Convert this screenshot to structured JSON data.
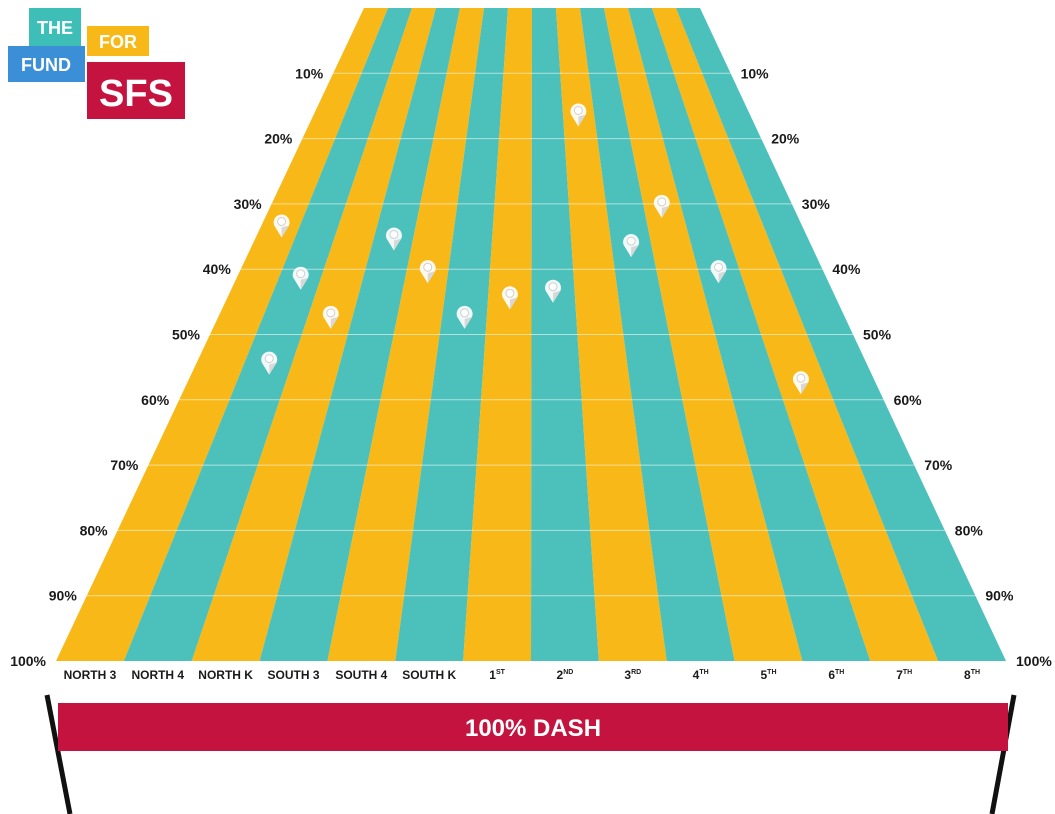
{
  "logo": {
    "line1": "THE",
    "line2": "FOR",
    "line3": "FUND",
    "line4": "SFS",
    "colors": {
      "the": "#3dbfb8",
      "for": "#f8b817",
      "fund": "#3b8fd6",
      "sfs": "#c4133f"
    }
  },
  "banner": {
    "label": "100% DASH",
    "color": "#c4133f"
  },
  "chart_data": {
    "type": "bar",
    "orientation": "vertical-progress-lanes",
    "categories": [
      {
        "label": "NORTH 3"
      },
      {
        "label": "NORTH 4"
      },
      {
        "label": "NORTH K"
      },
      {
        "label": "SOUTH 3"
      },
      {
        "label": "SOUTH 4"
      },
      {
        "label": "SOUTH K"
      },
      {
        "label": "1",
        "sup": "ST"
      },
      {
        "label": "2",
        "sup": "ND"
      },
      {
        "label": "3",
        "sup": "RD"
      },
      {
        "label": "4",
        "sup": "TH"
      },
      {
        "label": "5",
        "sup": "TH"
      },
      {
        "label": "6",
        "sup": "TH"
      },
      {
        "label": "7",
        "sup": "TH"
      },
      {
        "label": "8",
        "sup": "TH"
      }
    ],
    "y_ticks": [
      "10%",
      "20%",
      "30%",
      "40%",
      "50%",
      "60%",
      "70%",
      "80%",
      "90%",
      "100%"
    ],
    "ylim": [
      0,
      100
    ],
    "marker_values": [
      33,
      41,
      54,
      null,
      47,
      35,
      40,
      47,
      44,
      43,
      16,
      36,
      30,
      40,
      57,
      null
    ],
    "marker_lane_values": [
      {
        "lane": 0,
        "value": 33
      },
      {
        "lane": 1,
        "value": 41
      },
      {
        "lane": 1,
        "value": 54
      },
      {
        "lane": 2,
        "value": 47
      },
      {
        "lane": 3,
        "value": 35
      },
      {
        "lane": 4,
        "value": 40
      },
      {
        "lane": 5,
        "value": 47
      },
      {
        "lane": 6,
        "value": 44
      },
      {
        "lane": 7,
        "value": 43
      },
      {
        "lane": 8,
        "value": 16
      },
      {
        "lane": 9,
        "value": 36
      },
      {
        "lane": 10,
        "value": 30
      },
      {
        "lane": 11,
        "value": 40
      },
      {
        "lane": 12,
        "value": 57
      }
    ],
    "lane_colors": [
      "#f8b817",
      "#4cc0bb"
    ],
    "grid": true
  }
}
